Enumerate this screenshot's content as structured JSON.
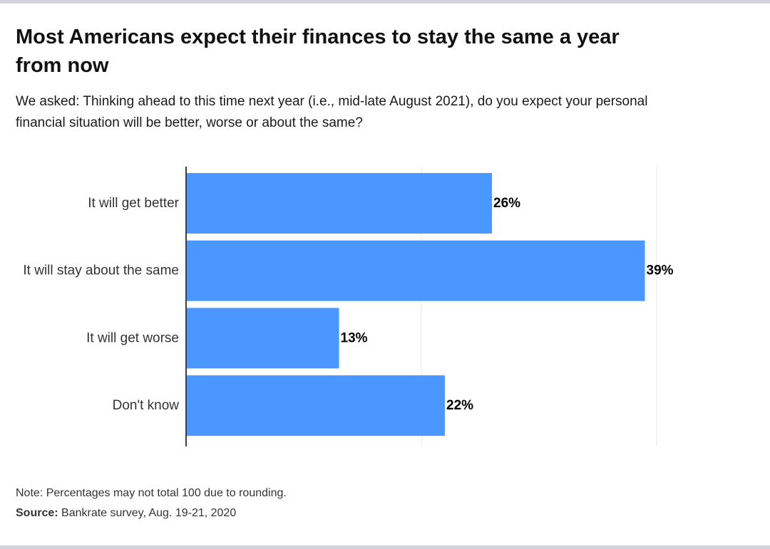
{
  "header": {
    "title": "Most Americans expect their finances to stay the same a year from now",
    "subtitle": "We asked: Thinking ahead to this time next year (i.e., mid-late August 2021), do you expect your personal financial situation will be better, worse or about the same?"
  },
  "footer": {
    "note": "Note: Percentages may not total 100 due to rounding.",
    "source_label": "Source:",
    "source_text": " Bankrate survey, Aug. 19-21, 2020"
  },
  "colors": {
    "bar": "#4a98ff",
    "gridline": "#e6e6e6",
    "axis": "#000000",
    "frame": "#d3d3de"
  },
  "chart_data": {
    "type": "bar",
    "orientation": "horizontal",
    "categories": [
      "It will get better",
      "It will stay about the same",
      "It will get worse",
      "Don't know"
    ],
    "values": [
      26,
      39,
      13,
      22
    ],
    "value_labels": [
      "26%",
      "39%",
      "13%",
      "22%"
    ],
    "xlim": [
      0,
      40
    ],
    "grid": true,
    "legend": "none"
  }
}
